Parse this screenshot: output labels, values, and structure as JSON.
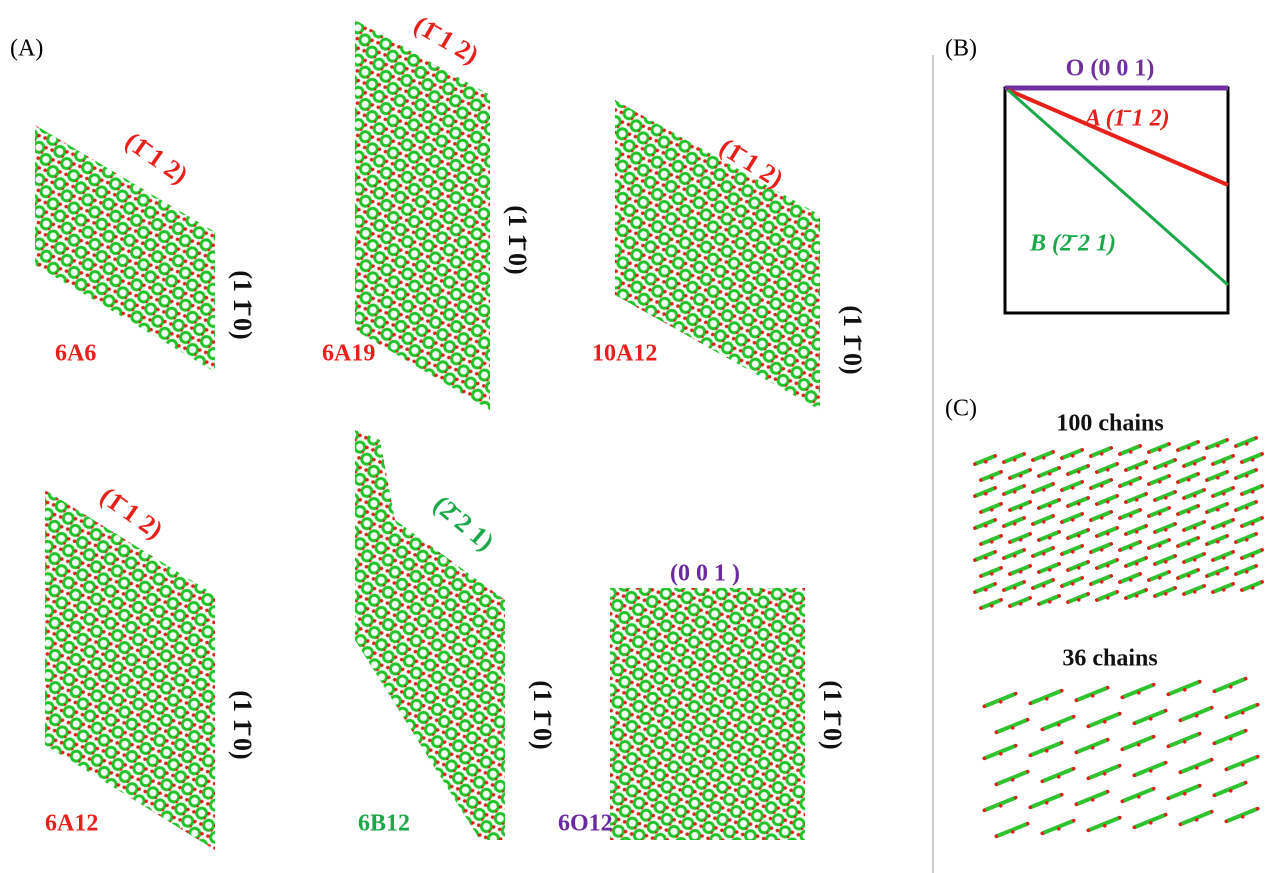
{
  "panel_labels": {
    "a": "(A)",
    "b": "(B)",
    "c": "(C)"
  },
  "panel_a": {
    "models": [
      {
        "name": "6A6",
        "top_face": "(1̄ 1 2)",
        "side_face": "(1 1̄ 0)"
      },
      {
        "name": "6A19",
        "top_face": "(1̄ 1 2)",
        "side_face": "(1 1̄ 0)"
      },
      {
        "name": "10A12",
        "top_face": "(1̄ 1 2)",
        "side_face": "(1 1̄ 0)"
      },
      {
        "name": "6A12",
        "top_face": "(1̄ 1 2)",
        "side_face": "(1 1̄ 0)"
      },
      {
        "name": "6B12",
        "top_face": "(2̄ 2 1)",
        "side_face": "(1 1̄ 0)"
      },
      {
        "name": "6O12",
        "top_face": "(0 0 1 )",
        "side_face": "(1 1̄ 0)"
      }
    ]
  },
  "panel_b": {
    "faces": [
      "O (0 0 1)",
      "A (1̄ 1 2)",
      "B (2̄ 2 1)"
    ]
  },
  "panel_c": {
    "captions": [
      "100 chains",
      "36 chains"
    ]
  }
}
